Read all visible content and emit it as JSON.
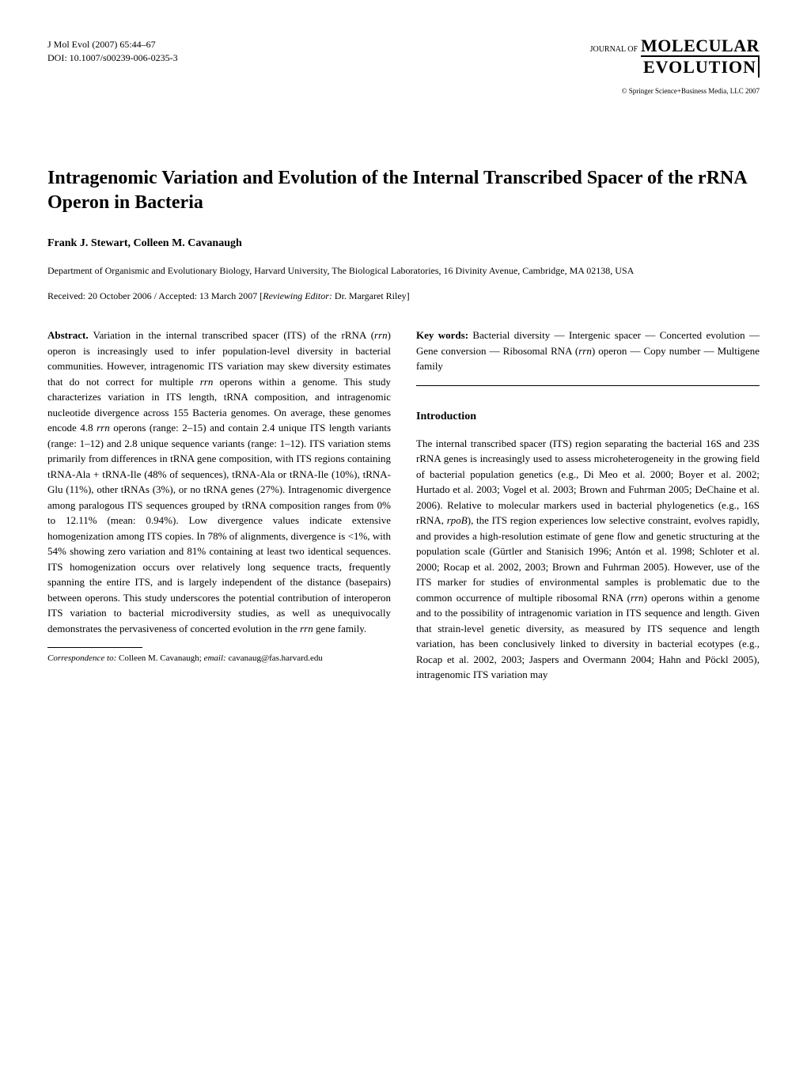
{
  "header": {
    "journal_line1": "J Mol Evol (2007) 65:44–67",
    "journal_line2": "DOI: 10.1007/s00239-006-0235-3",
    "logo_prefix": "JOURNAL OF",
    "logo_main": "MOLECULAR",
    "logo_sub": "EVOLUTION",
    "copyright": "© Springer Science+Business Media, LLC 2007"
  },
  "title": "Intragenomic Variation and Evolution of the Internal Transcribed Spacer of the rRNA Operon in Bacteria",
  "authors": "Frank J. Stewart, Colleen M. Cavanaugh",
  "affiliation": "Department of Organismic and Evolutionary Biology, Harvard University, The Biological Laboratories, 16 Divinity Avenue, Cambridge, MA 02138, USA",
  "dates_prefix": "Received: 20 October 2006 / Accepted: 13 March 2007 [",
  "dates_italic": "Reviewing Editor:",
  "dates_suffix": " Dr. Margaret Riley]",
  "abstract": {
    "label": "Abstract.",
    "text_1": "Variation in the internal transcribed spacer (ITS) of the rRNA (",
    "gene_1": "rrn",
    "text_2": ") operon is increasingly used to infer population-level diversity in bacterial communities. However, intragenomic ITS variation may skew diversity estimates that do not correct for multiple ",
    "gene_2": "rrn",
    "text_3": " operons within a genome. This study characterizes variation in ITS length, tRNA composition, and intragenomic nucleotide divergence across 155 Bacteria genomes. On average, these genomes encode 4.8 ",
    "gene_3": "rrn",
    "text_4": " operons (range: 2–15) and contain 2.4 unique ITS length variants (range: 1–12) and 2.8 unique sequence variants (range: 1–12). ITS variation stems primarily from differences in tRNA gene composition, with ITS regions containing tRNA-Ala + tRNA-Ile (48% of sequences), tRNA-Ala or tRNA-Ile (10%), tRNA-Glu (11%), other tRNAs (3%), or no tRNA genes (27%). Intragenomic divergence among paralogous ITS sequences grouped by tRNA composition ranges from 0% to 12.11% (mean: 0.94%). Low divergence values indicate extensive homogenization among ITS copies. In 78% of alignments, divergence is <1%, with 54% showing zero variation and 81% containing at least two identical sequences. ITS homogenization occurs over relatively long sequence tracts, frequently spanning the entire ITS, and is largely independent of the distance (basepairs) between operons. This study underscores the potential contribution of interoperon ITS variation to bacterial microdiversity studies, as well as unequivocally demonstrates the pervasiveness of concerted evolution in the ",
    "gene_4": "rrn",
    "text_5": " gene family."
  },
  "keywords": {
    "label": "Key words:",
    "text_1": "Bacterial diversity — Intergenic spacer — Concerted evolution — Gene conversion — Ribosomal RNA (",
    "gene_1": "rrn",
    "text_2": ") operon — Copy number — Multigene family"
  },
  "introduction": {
    "heading": "Introduction",
    "text_1": "The internal transcribed spacer (ITS) region separating the bacterial 16S and 23S rRNA genes is increasingly used to assess microheterogeneity in the growing field of bacterial population genetics (e.g., Di Meo et al. 2000; Boyer et al. 2002; Hurtado et al. 2003; Vogel et al. 2003; Brown and Fuhrman 2005; DeChaine et al. 2006). Relative to molecular markers used in bacterial phylogenetics (e.g., 16S rRNA, ",
    "gene_1": "rpoB",
    "text_2": "), the ITS region experiences low selective constraint, evolves rapidly, and provides a high-resolution estimate of gene flow and genetic structuring at the population scale (Gürtler and Stanisich 1996; Antón et al. 1998; Schloter et al. 2000; Rocap et al. 2002, 2003; Brown and Fuhrman 2005). However, use of the ITS marker for studies of environmental samples is problematic due to the common occurrence of multiple ribosomal RNA (",
    "gene_2": "rrn",
    "text_3": ") operons within a genome and to the possibility of intragenomic variation in ITS sequence and length. Given that strain-level genetic diversity, as measured by ITS sequence and length variation, has been conclusively linked to diversity in bacterial ecotypes (e.g., Rocap et al. 2002, 2003; Jaspers and Overmann 2004; Hahn and Pöckl 2005), intragenomic ITS variation may"
  },
  "footnote": {
    "label_italic": "Correspondence to:",
    "text_1": " Colleen M. Cavanaugh; ",
    "label_italic2": "email:",
    "text_2": " cavanaug@fas.harvard.edu"
  }
}
